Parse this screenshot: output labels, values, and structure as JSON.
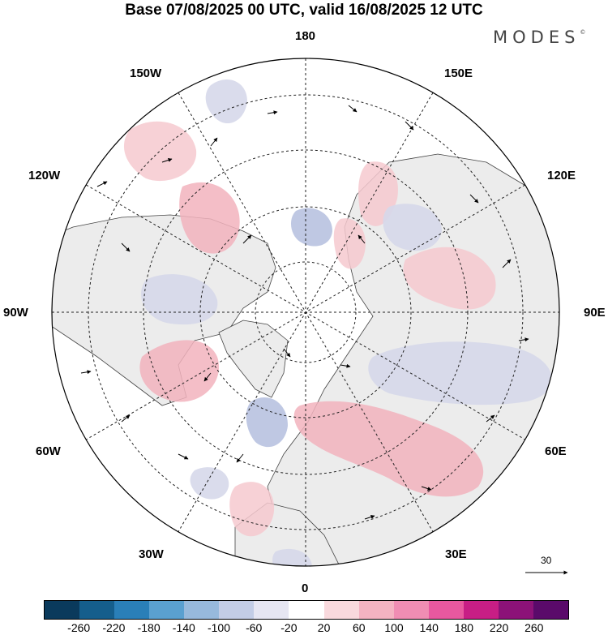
{
  "title": "Base 07/08/2025 00 UTC, valid 16/08/2025 12 UTC",
  "brand": {
    "name": "MODES",
    "mark": "©"
  },
  "map_labels": {
    "lon_180": "180",
    "lon_150w": "150W",
    "lon_150e": "150E",
    "lon_120w": "120W",
    "lon_120e": "120E",
    "lon_90w": "90W",
    "lon_90e": "90E",
    "lon_60w": "60W",
    "lon_60e": "60E",
    "lon_30w": "30W",
    "lon_30e": "30E",
    "lon_0": "0"
  },
  "reference_vector": {
    "value": "30"
  },
  "colorbar": {
    "colors": [
      "#0a3a5c",
      "#155e8c",
      "#2a7fb8",
      "#5aa0d0",
      "#97b9dc",
      "#c3cde6",
      "#e6e6f2",
      "#ffffff",
      "#f9d9dd",
      "#f4b3c2",
      "#f08db3",
      "#e8589f",
      "#c81e85",
      "#8c1278",
      "#5a0a6a"
    ],
    "ticks": [
      "-260",
      "-220",
      "-180",
      "-140",
      "-100",
      "-60",
      "-20",
      "20",
      "60",
      "100",
      "140",
      "180",
      "220",
      "260"
    ]
  }
}
